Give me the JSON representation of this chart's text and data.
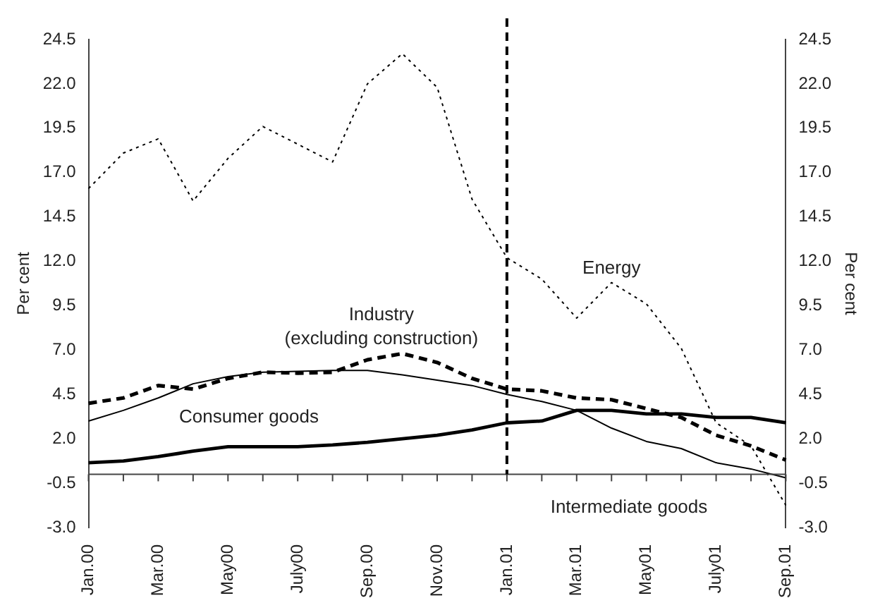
{
  "chart_data": {
    "type": "line",
    "categories": [
      "Jan.00",
      null,
      "Mar.00",
      null,
      "May00",
      null,
      "July00",
      null,
      "Sep.00",
      null,
      "Nov.00",
      null,
      "Jan.01",
      null,
      "Mar.01",
      null,
      "May01",
      null,
      "July01",
      null,
      "Sep.01"
    ],
    "series": [
      {
        "name": "Energy",
        "color": "#000000",
        "line_style": "dotted",
        "values": [
          16.1,
          18.1,
          18.9,
          15.4,
          17.8,
          19.6,
          18.6,
          17.6,
          22.0,
          23.7,
          21.8,
          15.5,
          12.2,
          11.0,
          8.8,
          10.8,
          9.6,
          7.1,
          2.9,
          1.6,
          -1.75
        ]
      },
      {
        "name": "Industry\n(excluding construction)",
        "color": "#000000",
        "line_style": "dashed",
        "values": [
          4.0,
          4.3,
          5.0,
          4.8,
          5.4,
          5.75,
          5.7,
          5.75,
          6.45,
          6.8,
          6.3,
          5.4,
          4.8,
          4.7,
          4.3,
          4.2,
          3.7,
          3.2,
          2.2,
          1.6,
          0.8
        ]
      },
      {
        "name": "Consumer goods",
        "color": "#000000",
        "line_style": "solid",
        "values": [
          0.65,
          0.75,
          1.0,
          1.3,
          1.55,
          1.55,
          1.55,
          1.65,
          1.8,
          2.0,
          2.2,
          2.5,
          2.9,
          3.0,
          3.6,
          3.6,
          3.4,
          3.4,
          3.2,
          3.2,
          2.9
        ]
      },
      {
        "name": "Intermediate goods",
        "color": "#000000",
        "line_style": "solid",
        "values": [
          3.0,
          3.6,
          4.3,
          5.1,
          5.5,
          5.75,
          5.8,
          5.85,
          5.85,
          5.6,
          5.3,
          5.0,
          4.5,
          4.1,
          3.6,
          2.6,
          1.85,
          1.45,
          0.65,
          0.3,
          -0.2
        ]
      }
    ],
    "ylabel": "Per cent",
    "y2label": "Per cent",
    "ylim": [
      -3.0,
      24.5
    ],
    "yticks": [
      {
        "value": -3,
        "label": "-3.0"
      },
      {
        "value": -0.5,
        "label": "-0.5"
      },
      {
        "value": 2,
        "label": "2.0"
      },
      {
        "value": 4.5,
        "label": "4.5"
      },
      {
        "value": 7,
        "label": "7.0"
      },
      {
        "value": 9.5,
        "label": "9.5"
      },
      {
        "value": 12,
        "label": "12.0"
      },
      {
        "value": 14.5,
        "label": "14.5"
      },
      {
        "value": 17,
        "label": "17.0"
      },
      {
        "value": 19.5,
        "label": "19.5"
      },
      {
        "value": 22,
        "label": "22.0"
      },
      {
        "value": 24.5,
        "label": "24.5"
      }
    ],
    "y2lim": [
      -3.0,
      24.5
    ],
    "y2ticks": [
      {
        "value": -3,
        "label": "-3.0"
      },
      {
        "value": -0.5,
        "label": "-0.5"
      },
      {
        "value": 2,
        "label": "2.0"
      },
      {
        "value": 4.5,
        "label": "4.5"
      },
      {
        "value": 7,
        "label": "7.0"
      },
      {
        "value": 9.5,
        "label": "9.5"
      },
      {
        "value": 12,
        "label": "12.0"
      },
      {
        "value": 14.5,
        "label": "14.5"
      },
      {
        "value": 17,
        "label": "17.0"
      },
      {
        "value": 19.5,
        "label": "19.5"
      },
      {
        "value": 22,
        "label": "22.0"
      },
      {
        "value": 24.5,
        "label": "24.5"
      }
    ],
    "ref_lines": [
      {
        "axis": "x",
        "value": "Jan.01",
        "line_style": "dashed",
        "color": "#000000"
      }
    ],
    "grid": false,
    "legend": false,
    "marker": "none"
  }
}
